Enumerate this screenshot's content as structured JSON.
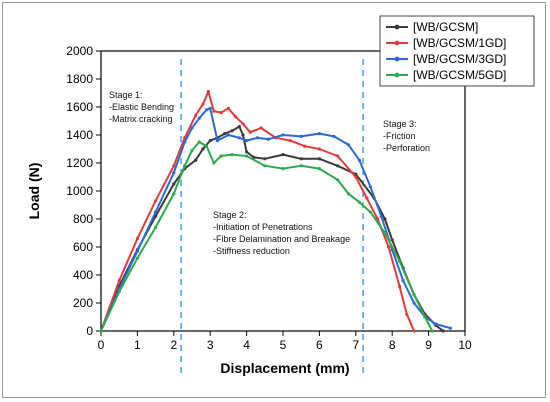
{
  "chart_data": {
    "type": "line",
    "title": "",
    "xlabel": "Displacement (mm)",
    "ylabel": "Load (N)",
    "xlim": [
      0,
      10
    ],
    "ylim": [
      0,
      2000
    ],
    "xticks": [
      "0",
      "1",
      "2",
      "3",
      "4",
      "5",
      "6",
      "7",
      "8",
      "9",
      "10"
    ],
    "yticks": [
      "0",
      "200",
      "400",
      "600",
      "800",
      "1000",
      "1200",
      "1400",
      "1600",
      "1800",
      "2000"
    ],
    "grid": false,
    "legend_position": "top-right",
    "stage_lines_x": [
      2.2,
      7.2
    ],
    "annotations": {
      "stage1": [
        "Stage 1:",
        "-Elastic Bending",
        "-Matrix cracking"
      ],
      "stage2": [
        "Stage 2:",
        "-Initiation of Penetrations",
        "-Fibre Delamination and Breakage",
        "-Stiffness reduction"
      ],
      "stage3": [
        "Stage 3:",
        "-Friction",
        "-Perforation"
      ]
    },
    "series": [
      {
        "name": "[WB/GCSM]",
        "color": "#3a3a3a",
        "x": [
          0,
          0.5,
          1.0,
          1.5,
          2.0,
          2.3,
          2.6,
          2.8,
          3.0,
          3.2,
          3.4,
          3.6,
          3.8,
          3.9,
          4.0,
          4.2,
          4.5,
          5.0,
          5.5,
          6.0,
          6.5,
          7.0,
          7.5,
          7.8,
          8.0,
          8.3,
          8.6,
          8.9,
          9.2,
          9.4
        ],
        "y": [
          0,
          320,
          580,
          820,
          1050,
          1160,
          1220,
          1300,
          1360,
          1380,
          1410,
          1430,
          1460,
          1400,
          1280,
          1240,
          1230,
          1260,
          1230,
          1230,
          1180,
          1120,
          950,
          800,
          650,
          450,
          260,
          120,
          40,
          0
        ]
      },
      {
        "name": "[WB/GCSM/1GD]",
        "color": "#e23b3b",
        "x": [
          0,
          0.5,
          1.0,
          1.5,
          2.0,
          2.3,
          2.6,
          2.8,
          2.95,
          3.1,
          3.3,
          3.5,
          3.7,
          3.9,
          4.1,
          4.4,
          4.8,
          5.2,
          5.6,
          6.0,
          6.5,
          7.0,
          7.3,
          7.6,
          7.9,
          8.2,
          8.4,
          8.6
        ],
        "y": [
          0,
          360,
          660,
          930,
          1180,
          1380,
          1540,
          1620,
          1710,
          1570,
          1560,
          1590,
          1530,
          1480,
          1420,
          1450,
          1380,
          1360,
          1320,
          1300,
          1250,
          1100,
          950,
          800,
          600,
          320,
          120,
          0
        ]
      },
      {
        "name": "[WB/GCSM/3GD]",
        "color": "#2e67d8",
        "x": [
          0,
          0.5,
          1.0,
          1.5,
          2.0,
          2.3,
          2.5,
          2.7,
          2.9,
          3.0,
          3.2,
          3.5,
          3.8,
          4.0,
          4.3,
          4.6,
          5.0,
          5.5,
          6.0,
          6.4,
          6.8,
          7.1,
          7.4,
          7.7,
          8.0,
          8.3,
          8.6,
          8.9,
          9.2,
          9.6
        ],
        "y": [
          0,
          300,
          570,
          850,
          1130,
          1350,
          1450,
          1520,
          1580,
          1590,
          1360,
          1400,
          1380,
          1360,
          1380,
          1370,
          1400,
          1390,
          1410,
          1390,
          1330,
          1220,
          1030,
          820,
          580,
          360,
          200,
          100,
          50,
          20
        ]
      },
      {
        "name": "[WB/GCSM/5GD]",
        "color": "#2eaa4e",
        "x": [
          0,
          0.5,
          1.0,
          1.5,
          2.0,
          2.3,
          2.5,
          2.7,
          2.9,
          3.1,
          3.3,
          3.6,
          4.0,
          4.5,
          5.0,
          5.5,
          6.0,
          6.5,
          6.8,
          7.1,
          7.4,
          7.8,
          8.2,
          8.6,
          8.9,
          9.1
        ],
        "y": [
          0,
          280,
          520,
          740,
          980,
          1180,
          1290,
          1350,
          1320,
          1200,
          1250,
          1260,
          1250,
          1180,
          1160,
          1180,
          1160,
          1080,
          980,
          920,
          850,
          700,
          500,
          260,
          100,
          0
        ]
      }
    ]
  }
}
